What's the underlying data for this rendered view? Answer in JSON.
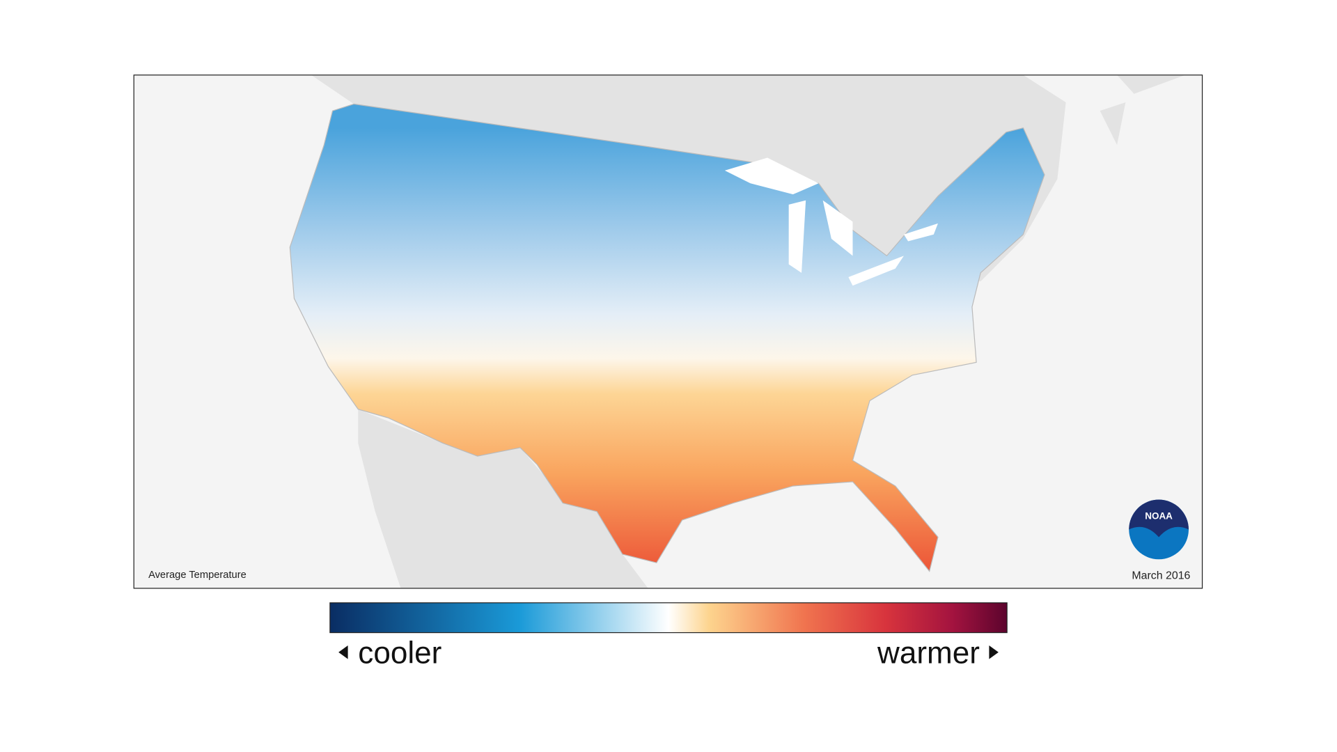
{
  "map": {
    "title": "Average Temperature",
    "date": "March 2016",
    "logo": "NOAA"
  },
  "legend": {
    "low": "cooler",
    "high": "warmer"
  }
}
